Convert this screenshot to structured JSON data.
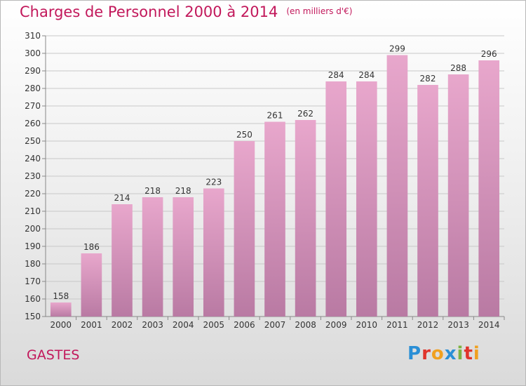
{
  "title": "Charges de Personnel 2000 à 2014",
  "subtitle": "(en milliers d'€)",
  "place": "GASTES",
  "logo": "Proxiti",
  "colors": {
    "accent": "#c2185b",
    "bar_top": "#e8a7cc",
    "bar_bottom": "#b97aa3"
  },
  "chart_data": {
    "type": "bar",
    "categories": [
      "2000",
      "2001",
      "2002",
      "2003",
      "2004",
      "2005",
      "2006",
      "2007",
      "2008",
      "2009",
      "2010",
      "2011",
      "2012",
      "2013",
      "2014"
    ],
    "values": [
      158,
      186,
      214,
      218,
      218,
      223,
      250,
      261,
      262,
      284,
      284,
      299,
      282,
      288,
      296
    ],
    "title": "Charges de Personnel 2000 à 2014",
    "ylim": [
      150,
      310
    ],
    "yticks": [
      150,
      160,
      170,
      180,
      190,
      200,
      210,
      220,
      230,
      240,
      250,
      260,
      270,
      280,
      290,
      300,
      310
    ],
    "grid": true
  }
}
